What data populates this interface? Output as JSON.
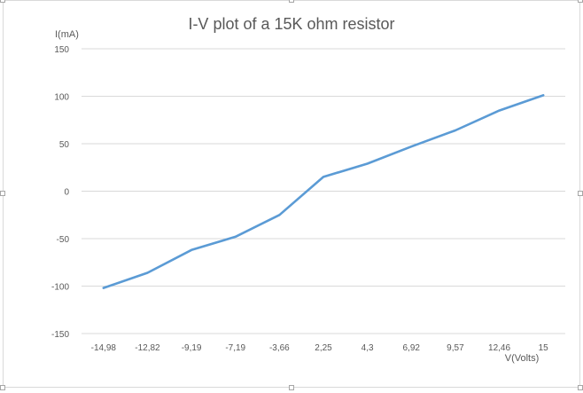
{
  "chart_data": {
    "type": "line",
    "title": "I-V plot of a 15K ohm resistor",
    "xlabel": "V(Volts)",
    "ylabel": "I(mA)",
    "categories": [
      "-14,98",
      "-12,82",
      "-9,19",
      "-7,19",
      "-3,66",
      "2,25",
      "4,3",
      "6,92",
      "9,57",
      "12,46",
      "15"
    ],
    "series": [
      {
        "values": [
          -102,
          -86,
          -62,
          -48,
          -25,
          15,
          29,
          47,
          64,
          85,
          101
        ],
        "color": "#5B9BD5"
      }
    ],
    "ylim": [
      -150,
      150
    ],
    "yticks": [
      "150",
      "100",
      "50",
      "0",
      "-50",
      "-100",
      "-150"
    ],
    "ytick_values": [
      150,
      100,
      50,
      0,
      -50,
      -100,
      -150
    ],
    "grid": true,
    "legend": "none"
  },
  "colors": {
    "line": "#5B9BD5",
    "grid": "#d9d9d9",
    "text": "#595959",
    "title": "#595959"
  }
}
